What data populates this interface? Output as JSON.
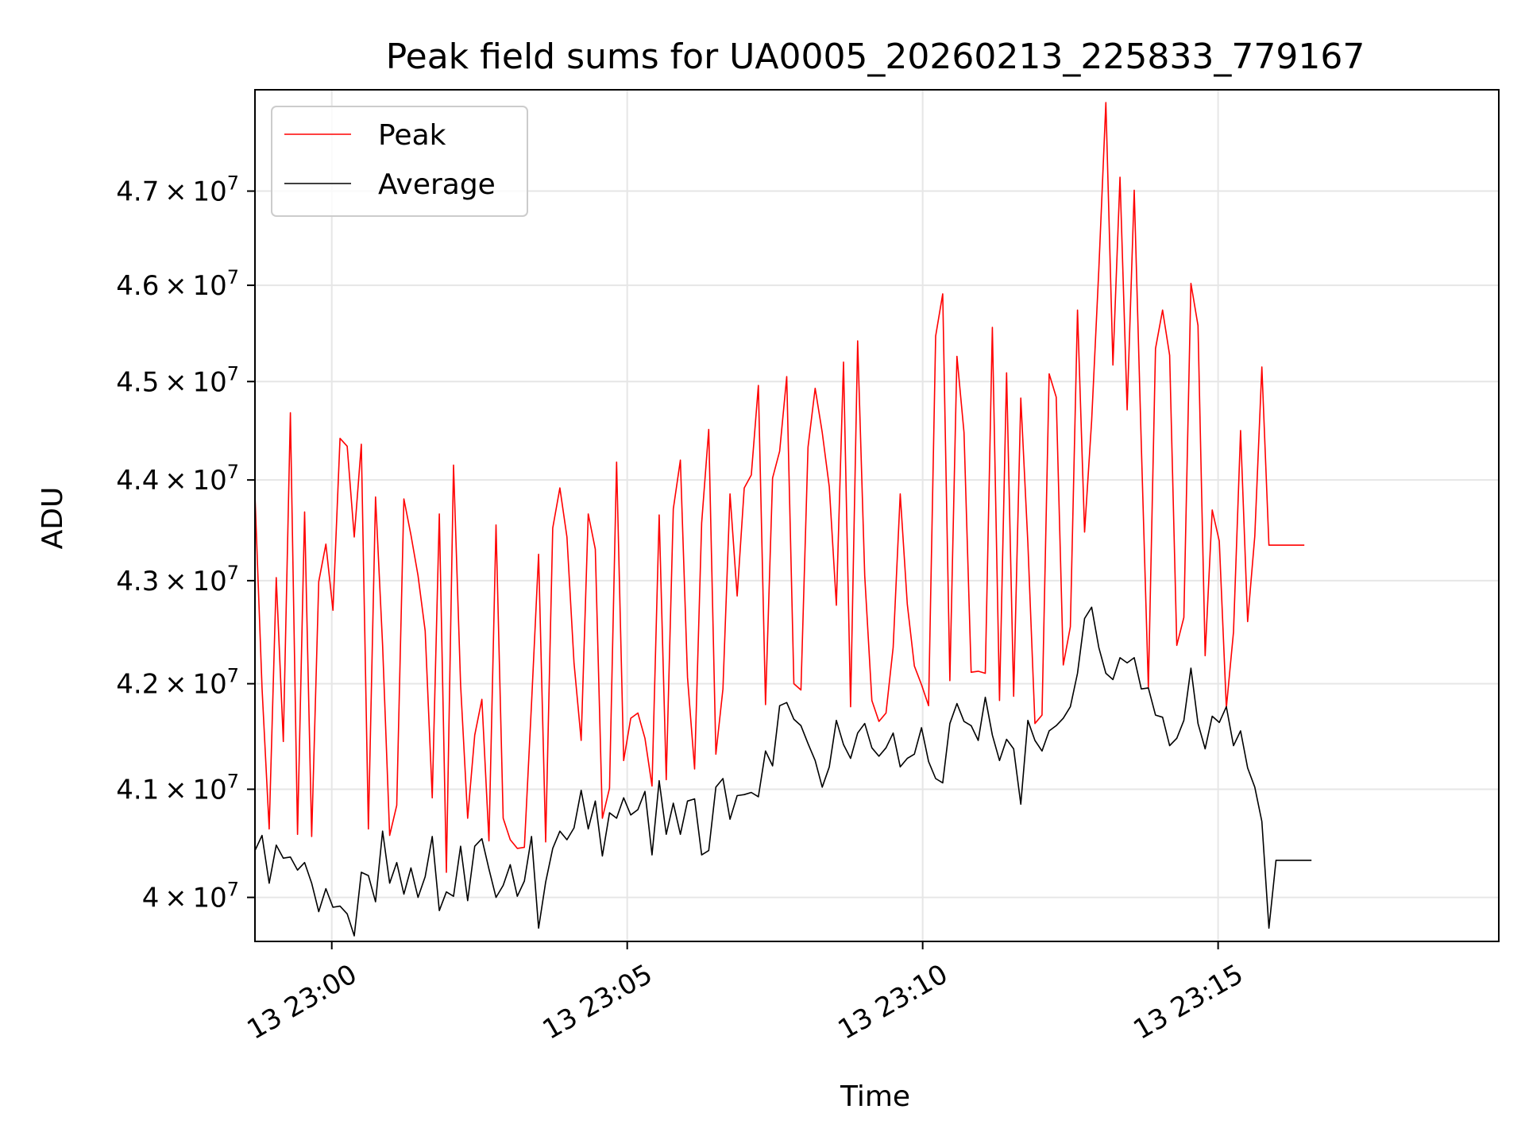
{
  "chart_data": {
    "type": "line",
    "title": "Peak field sums for UA0005_20260213_225833_779167",
    "xlabel": "Time",
    "ylabel": "ADU",
    "x_start": "2026-02-13T22:58:42",
    "x_end": "2026-02-13T23:19:45",
    "x_step_seconds": 7.2,
    "ylim": [
      39600000,
      48100000
    ],
    "y_scale": "log",
    "grid": true,
    "legend_position": "top-left",
    "x_ticks": [
      {
        "time": "2026-02-13T23:00:00",
        "label": "13 23:00"
      },
      {
        "time": "2026-02-13T23:05:00",
        "label": "13 23:05"
      },
      {
        "time": "2026-02-13T23:10:00",
        "label": "13 23:10"
      },
      {
        "time": "2026-02-13T23:15:00",
        "label": "13 23:15"
      }
    ],
    "y_ticks": [
      {
        "value": 40000000,
        "mantissa": "4",
        "exponent": "7"
      },
      {
        "value": 41000000,
        "mantissa": "4.1",
        "exponent": "7"
      },
      {
        "value": 42000000,
        "mantissa": "4.2",
        "exponent": "7"
      },
      {
        "value": 43000000,
        "mantissa": "4.3",
        "exponent": "7"
      },
      {
        "value": 44000000,
        "mantissa": "4.4",
        "exponent": "7"
      },
      {
        "value": 45000000,
        "mantissa": "4.5",
        "exponent": "7"
      },
      {
        "value": 46000000,
        "mantissa": "4.6",
        "exponent": "7"
      },
      {
        "value": 47000000,
        "mantissa": "4.7",
        "exponent": "7"
      }
    ],
    "times_note": "uniform sampling from x_start at x_step_seconds",
    "series": [
      {
        "name": "Peak",
        "color": "#ff0000",
        "values": [
          43850000,
          41960000,
          40630000,
          43030000,
          41450000,
          44680000,
          40580000,
          43680000,
          40560000,
          42990000,
          43360000,
          42710000,
          44420000,
          44340000,
          43430000,
          44360000,
          40630000,
          43830000,
          42370000,
          40570000,
          40850000,
          43810000,
          43450000,
          43050000,
          42510000,
          40920000,
          43660000,
          40230000,
          44150000,
          41990000,
          40730000,
          41510000,
          41850000,
          40520000,
          43550000,
          40730000,
          40530000,
          40450000,
          40460000,
          41810000,
          43260000,
          40510000,
          43520000,
          43920000,
          43430000,
          42200000,
          41460000,
          43660000,
          43310000,
          40730000,
          41010000,
          44180000,
          41270000,
          41670000,
          41720000,
          41480000,
          41030000,
          43650000,
          41090000,
          43710000,
          44200000,
          42060000,
          41190000,
          43570000,
          44510000,
          41330000,
          41950000,
          43860000,
          42850000,
          43920000,
          44050000,
          44960000,
          41800000,
          44020000,
          44290000,
          45050000,
          42000000,
          41940000,
          44330000,
          44930000,
          44480000,
          43930000,
          42760000,
          45200000,
          41780000,
          45420000,
          43050000,
          41840000,
          41640000,
          41720000,
          42350000,
          43860000,
          42770000,
          42170000,
          41990000,
          41790000,
          45470000,
          45910000,
          42030000,
          45260000,
          44480000,
          42110000,
          42120000,
          42100000,
          45560000,
          41840000,
          45090000,
          41880000,
          44830000,
          43370000,
          41620000,
          41700000,
          45080000,
          44840000,
          42180000,
          42550000,
          45740000,
          43480000,
          44600000,
          46160000,
          47960000,
          45170000,
          47150000,
          44710000,
          47010000,
          44360000,
          41960000,
          45340000,
          45740000,
          45270000,
          42370000,
          42640000,
          46020000,
          45580000,
          42270000,
          43700000,
          43390000,
          41770000,
          42500000,
          44500000,
          42600000,
          43440000,
          45150000,
          43350000,
          43350000,
          43350000,
          43350000,
          43350000,
          43350000
        ]
      },
      {
        "name": "Average",
        "color": "#000000",
        "values": [
          40430000,
          40570000,
          40130000,
          40480000,
          40360000,
          40370000,
          40250000,
          40320000,
          40130000,
          39870000,
          40080000,
          39910000,
          39920000,
          39850000,
          39650000,
          40230000,
          40200000,
          39960000,
          40610000,
          40130000,
          40320000,
          40030000,
          40270000,
          40000000,
          40190000,
          40560000,
          39880000,
          40050000,
          40010000,
          40470000,
          39970000,
          40470000,
          40540000,
          40260000,
          40000000,
          40110000,
          40300000,
          40010000,
          40150000,
          40560000,
          39720000,
          40140000,
          40450000,
          40610000,
          40530000,
          40640000,
          40990000,
          40630000,
          40890000,
          40380000,
          40780000,
          40730000,
          40920000,
          40760000,
          40810000,
          40980000,
          40390000,
          41080000,
          40580000,
          40870000,
          40580000,
          40890000,
          40910000,
          40390000,
          40430000,
          41020000,
          41100000,
          40720000,
          40940000,
          40950000,
          40970000,
          40930000,
          41360000,
          41220000,
          41790000,
          41820000,
          41660000,
          41600000,
          41430000,
          41270000,
          41020000,
          41210000,
          41650000,
          41420000,
          41290000,
          41530000,
          41620000,
          41390000,
          41310000,
          41390000,
          41530000,
          41210000,
          41290000,
          41330000,
          41580000,
          41260000,
          41100000,
          41060000,
          41620000,
          41810000,
          41640000,
          41600000,
          41460000,
          41870000,
          41510000,
          41270000,
          41470000,
          41380000,
          40860000,
          41650000,
          41460000,
          41360000,
          41550000,
          41600000,
          41670000,
          41780000,
          42100000,
          42630000,
          42740000,
          42350000,
          42100000,
          42040000,
          42250000,
          42200000,
          42250000,
          41950000,
          41960000,
          41700000,
          41680000,
          41410000,
          41480000,
          41650000,
          42150000,
          41620000,
          41380000,
          41690000,
          41630000,
          41780000,
          41410000,
          41550000,
          41200000,
          41020000,
          40700000,
          39720000,
          40340000,
          40340000,
          40340000,
          40340000,
          40340000,
          40340000
        ]
      }
    ]
  }
}
